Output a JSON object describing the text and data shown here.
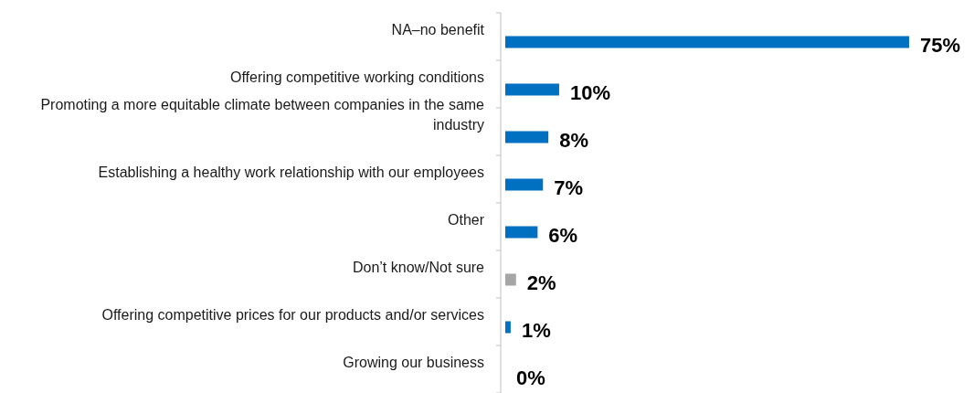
{
  "chart_data": {
    "type": "bar",
    "orientation": "horizontal",
    "categories": [
      "NA–no benefit",
      "Offering competitive working conditions",
      "Promoting a more equitable climate between companies in the same industry",
      "Establishing a healthy work relationship with our employees",
      "Other",
      "Don’t know/Not sure",
      "Offering competitive prices for our products and/or services",
      "Growing our business"
    ],
    "values": [
      75,
      10,
      8,
      7,
      6,
      2,
      1,
      0
    ],
    "colors": [
      "#0070c0",
      "#0070c0",
      "#0070c0",
      "#0070c0",
      "#0070c0",
      "#a6a6a6",
      "#0070c0",
      "#0070c0"
    ],
    "value_labels": [
      "75%",
      "10%",
      "8%",
      "7%",
      "6%",
      "2%",
      "1%",
      "0%"
    ]
  }
}
